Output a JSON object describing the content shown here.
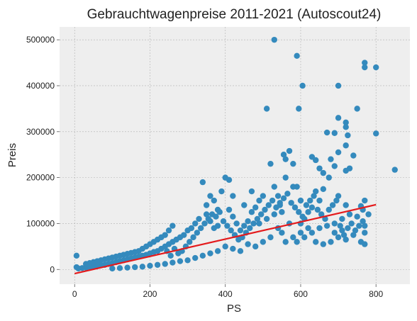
{
  "chart_data": {
    "type": "scatter",
    "title": "Gebrauchtwagenpreise 2011-2021 (Autoscout24)",
    "xlabel": "PS",
    "ylabel": "Preis",
    "xlim": [
      -40,
      890
    ],
    "ylim": [
      -32000,
      528000
    ],
    "x_ticks": [
      0,
      200,
      400,
      600,
      800
    ],
    "y_ticks": [
      0,
      100000,
      200000,
      300000,
      400000,
      500000
    ],
    "x_tick_labels": [
      "0",
      "200",
      "400",
      "600",
      "800"
    ],
    "y_tick_labels": [
      "0",
      "100000",
      "200000",
      "300000",
      "400000",
      "500000"
    ],
    "grid": true,
    "colors": {
      "background": "#eeeeee",
      "grid": "#b2b2b2",
      "points": "#348abd",
      "regression": "#e41a1c"
    },
    "series": [
      {
        "type": "scatter",
        "points": [
          [
            530,
            500000
          ],
          [
            590,
            465000
          ],
          [
            605,
            400000
          ],
          [
            700,
            400000
          ],
          [
            770,
            450000
          ],
          [
            770,
            440000
          ],
          [
            800,
            440000
          ],
          [
            510,
            350000
          ],
          [
            595,
            350000
          ],
          [
            750,
            350000
          ],
          [
            700,
            330000
          ],
          [
            720,
            320000
          ],
          [
            670,
            298000
          ],
          [
            720,
            310000
          ],
          [
            725,
            292000
          ],
          [
            690,
            297000
          ],
          [
            800,
            296000
          ],
          [
            720,
            270000
          ],
          [
            740,
            248000
          ],
          [
            700,
            255000
          ],
          [
            680,
            240000
          ],
          [
            690,
            225000
          ],
          [
            730,
            220000
          ],
          [
            630,
            245000
          ],
          [
            640,
            238000
          ],
          [
            650,
            220000
          ],
          [
            660,
            210000
          ],
          [
            675,
            200000
          ],
          [
            720,
            215000
          ],
          [
            850,
            217000
          ],
          [
            770,
            150000
          ],
          [
            770,
            95000
          ],
          [
            770,
            55000
          ],
          [
            760,
            138000
          ],
          [
            720,
            140000
          ],
          [
            700,
            160000
          ],
          [
            660,
            175000
          ],
          [
            650,
            150000
          ],
          [
            640,
            170000
          ],
          [
            630,
            135000
          ],
          [
            620,
            125000
          ],
          [
            610,
            110000
          ],
          [
            600,
            150000
          ],
          [
            580,
            180000
          ],
          [
            560,
            200000
          ],
          [
            555,
            250000
          ],
          [
            560,
            240000
          ],
          [
            570,
            258000
          ],
          [
            580,
            230000
          ],
          [
            590,
            180000
          ],
          [
            520,
            230000
          ],
          [
            530,
            180000
          ],
          [
            540,
            160000
          ],
          [
            545,
            140000
          ],
          [
            550,
            125000
          ],
          [
            500,
            160000
          ],
          [
            490,
            150000
          ],
          [
            480,
            135000
          ],
          [
            470,
            125000
          ],
          [
            460,
            105000
          ],
          [
            450,
            95000
          ],
          [
            440,
            85000
          ],
          [
            430,
            100000
          ],
          [
            420,
            115000
          ],
          [
            410,
            130000
          ],
          [
            400,
            200000
          ],
          [
            410,
            195000
          ],
          [
            380,
            95000
          ],
          [
            370,
            90000
          ],
          [
            360,
            105000
          ],
          [
            350,
            120000
          ],
          [
            340,
            190000
          ],
          [
            330,
            110000
          ],
          [
            320,
            100000
          ],
          [
            310,
            90000
          ],
          [
            300,
            85000
          ],
          [
            290,
            75000
          ],
          [
            280,
            70000
          ],
          [
            270,
            65000
          ],
          [
            260,
            60000
          ],
          [
            250,
            55000
          ],
          [
            240,
            50000
          ],
          [
            230,
            45000
          ],
          [
            220,
            40000
          ],
          [
            210,
            38000
          ],
          [
            200,
            35000
          ],
          [
            190,
            32000
          ],
          [
            180,
            30000
          ],
          [
            170,
            28000
          ],
          [
            160,
            26000
          ],
          [
            150,
            24000
          ],
          [
            140,
            22000
          ],
          [
            130,
            20000
          ],
          [
            120,
            18000
          ],
          [
            110,
            16000
          ],
          [
            100,
            14000
          ],
          [
            90,
            12000
          ],
          [
            80,
            10000
          ],
          [
            70,
            9000
          ],
          [
            60,
            7000
          ],
          [
            50,
            6000
          ],
          [
            40,
            5000
          ],
          [
            30,
            4000
          ],
          [
            20,
            3000
          ],
          [
            10,
            2000
          ],
          [
            5,
            30000
          ],
          [
            5,
            5000
          ],
          [
            30,
            12000
          ],
          [
            600,
            80000
          ],
          [
            620,
            90000
          ],
          [
            640,
            60000
          ],
          [
            660,
            55000
          ],
          [
            680,
            60000
          ],
          [
            690,
            80000
          ],
          [
            700,
            70000
          ],
          [
            710,
            85000
          ],
          [
            720,
            65000
          ],
          [
            600,
            100000
          ],
          [
            580,
            70000
          ],
          [
            560,
            60000
          ],
          [
            540,
            90000
          ],
          [
            520,
            70000
          ],
          [
            500,
            60000
          ],
          [
            480,
            50000
          ],
          [
            460,
            55000
          ],
          [
            440,
            40000
          ],
          [
            420,
            45000
          ],
          [
            400,
            50000
          ],
          [
            380,
            40000
          ],
          [
            360,
            35000
          ],
          [
            340,
            30000
          ],
          [
            320,
            25000
          ],
          [
            300,
            20000
          ],
          [
            280,
            18000
          ],
          [
            260,
            15000
          ],
          [
            240,
            12000
          ],
          [
            220,
            10000
          ],
          [
            200,
            8000
          ],
          [
            180,
            6000
          ],
          [
            160,
            5000
          ],
          [
            140,
            4000
          ],
          [
            120,
            3000
          ],
          [
            100,
            2000
          ],
          [
            250,
            85000
          ],
          [
            260,
            95000
          ],
          [
            240,
            75000
          ],
          [
            230,
            70000
          ],
          [
            220,
            65000
          ],
          [
            210,
            60000
          ],
          [
            200,
            55000
          ],
          [
            190,
            50000
          ],
          [
            180,
            45000
          ],
          [
            170,
            40000
          ],
          [
            160,
            38000
          ],
          [
            150,
            36000
          ],
          [
            140,
            34000
          ],
          [
            130,
            32000
          ],
          [
            120,
            30000
          ],
          [
            110,
            28000
          ],
          [
            100,
            26000
          ],
          [
            90,
            24000
          ],
          [
            80,
            22000
          ],
          [
            70,
            20000
          ],
          [
            60,
            18000
          ],
          [
            50,
            16000
          ],
          [
            40,
            14000
          ],
          [
            350,
            140000
          ],
          [
            360,
            160000
          ],
          [
            370,
            150000
          ],
          [
            380,
            130000
          ],
          [
            390,
            170000
          ],
          [
            420,
            160000
          ],
          [
            450,
            140000
          ],
          [
            470,
            170000
          ],
          [
            490,
            100000
          ],
          [
            510,
            110000
          ],
          [
            530,
            120000
          ],
          [
            550,
            80000
          ],
          [
            570,
            100000
          ],
          [
            590,
            60000
          ],
          [
            610,
            70000
          ],
          [
            630,
            80000
          ],
          [
            650,
            90000
          ],
          [
            670,
            95000
          ],
          [
            690,
            100000
          ],
          [
            710,
            110000
          ],
          [
            730,
            120000
          ],
          [
            750,
            115000
          ],
          [
            765,
            130000
          ],
          [
            780,
            120000
          ],
          [
            770,
            80000
          ],
          [
            760,
            60000
          ],
          [
            740,
            75000
          ],
          [
            245,
            40000
          ],
          [
            255,
            30000
          ],
          [
            265,
            45000
          ],
          [
            275,
            35000
          ],
          [
            285,
            40000
          ],
          [
            295,
            50000
          ],
          [
            305,
            60000
          ],
          [
            315,
            70000
          ],
          [
            325,
            80000
          ],
          [
            335,
            90000
          ],
          [
            345,
            100000
          ],
          [
            355,
            110000
          ],
          [
            365,
            120000
          ],
          [
            375,
            115000
          ],
          [
            385,
            125000
          ],
          [
            395,
            105000
          ],
          [
            405,
            95000
          ],
          [
            415,
            85000
          ],
          [
            425,
            75000
          ],
          [
            435,
            65000
          ],
          [
            445,
            70000
          ],
          [
            455,
            80000
          ],
          [
            465,
            90000
          ],
          [
            475,
            100000
          ],
          [
            485,
            110000
          ],
          [
            495,
            120000
          ],
          [
            505,
            130000
          ],
          [
            515,
            140000
          ],
          [
            525,
            150000
          ],
          [
            535,
            135000
          ],
          [
            545,
            145000
          ],
          [
            555,
            155000
          ],
          [
            565,
            165000
          ],
          [
            575,
            145000
          ],
          [
            585,
            135000
          ],
          [
            595,
            125000
          ],
          [
            605,
            115000
          ],
          [
            615,
            140000
          ],
          [
            625,
            150000
          ],
          [
            635,
            160000
          ],
          [
            645,
            130000
          ],
          [
            655,
            120000
          ],
          [
            665,
            110000
          ],
          [
            675,
            130000
          ],
          [
            685,
            140000
          ],
          [
            695,
            150000
          ],
          [
            705,
            95000
          ],
          [
            715,
            75000
          ],
          [
            725,
            90000
          ],
          [
            735,
            100000
          ],
          [
            745,
            85000
          ],
          [
            755,
            95000
          ],
          [
            765,
            105000
          ]
        ]
      },
      {
        "type": "line",
        "points": [
          [
            0,
            -9000
          ],
          [
            800,
            141000
          ]
        ]
      }
    ]
  }
}
